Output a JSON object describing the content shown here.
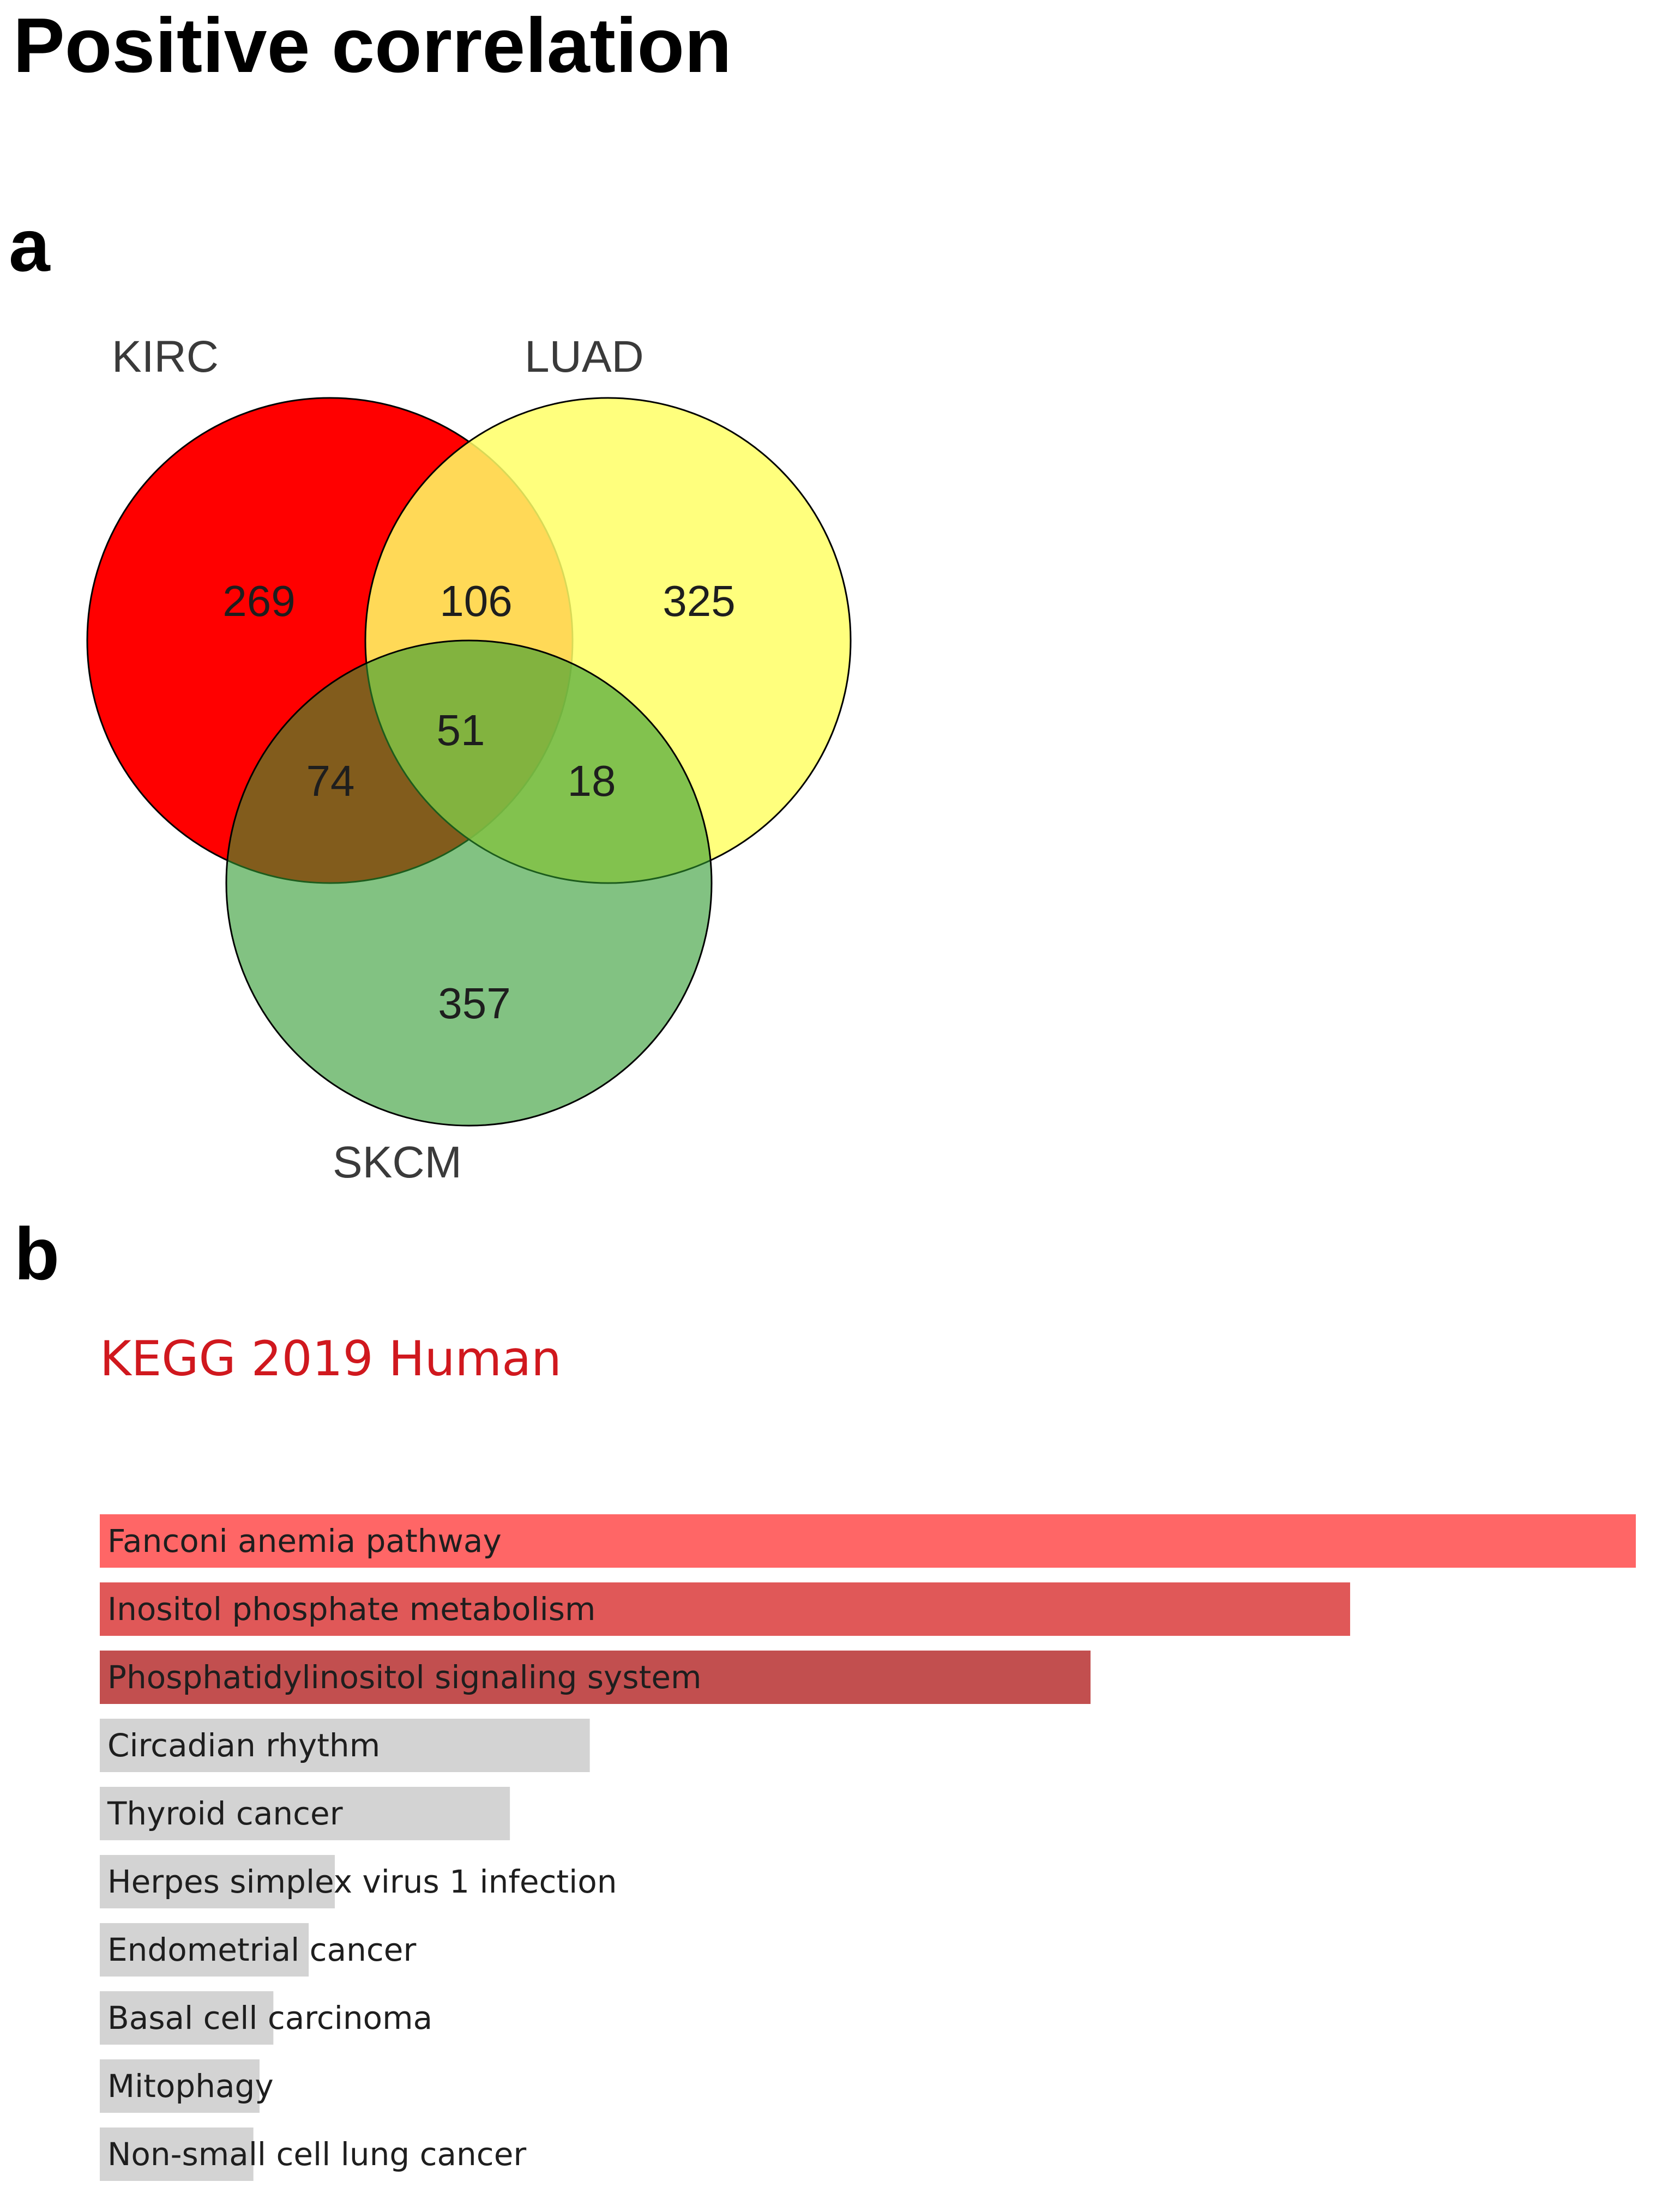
{
  "title": "Positive correlation",
  "panels": {
    "a": "a",
    "b": "b"
  },
  "colors": {
    "kirc": "#ff0000",
    "luad": "#ffff66",
    "skcm": "#4aa84a",
    "bar_significant": [
      "#ff6666",
      "#e05858",
      "#c24f4f"
    ],
    "bar_other": "#d3d3d3",
    "kegg_title": "#d0181e"
  },
  "chart_data": [
    {
      "type": "venn",
      "sets": [
        "KIRC",
        "LUAD",
        "SKCM"
      ],
      "regions": [
        {
          "sets": [
            "KIRC"
          ],
          "count": 269
        },
        {
          "sets": [
            "LUAD"
          ],
          "count": 325
        },
        {
          "sets": [
            "SKCM"
          ],
          "count": 357
        },
        {
          "sets": [
            "KIRC",
            "LUAD"
          ],
          "count": 106
        },
        {
          "sets": [
            "KIRC",
            "SKCM"
          ],
          "count": 74
        },
        {
          "sets": [
            "LUAD",
            "SKCM"
          ],
          "count": 18
        },
        {
          "sets": [
            "KIRC",
            "LUAD",
            "SKCM"
          ],
          "count": 51
        }
      ]
    },
    {
      "type": "bar",
      "orientation": "horizontal",
      "title": "KEGG 2019 Human",
      "categories": [
        "Fanconi anemia pathway",
        "Inositol phosphate metabolism",
        "Phosphatidylinositol signaling system",
        "Circadian rhythm",
        "Thyroid cancer",
        "Herpes simplex virus 1 infection",
        "Endometrial cancer",
        "Basal cell carcinoma",
        "Mitophagy",
        "Non-small cell lung cancer"
      ],
      "values": [
        1.0,
        0.814,
        0.645,
        0.319,
        0.267,
        0.153,
        0.136,
        0.113,
        0.104,
        0.1
      ],
      "highlighted": [
        true,
        true,
        true,
        false,
        false,
        false,
        false,
        false,
        false,
        false
      ]
    }
  ]
}
